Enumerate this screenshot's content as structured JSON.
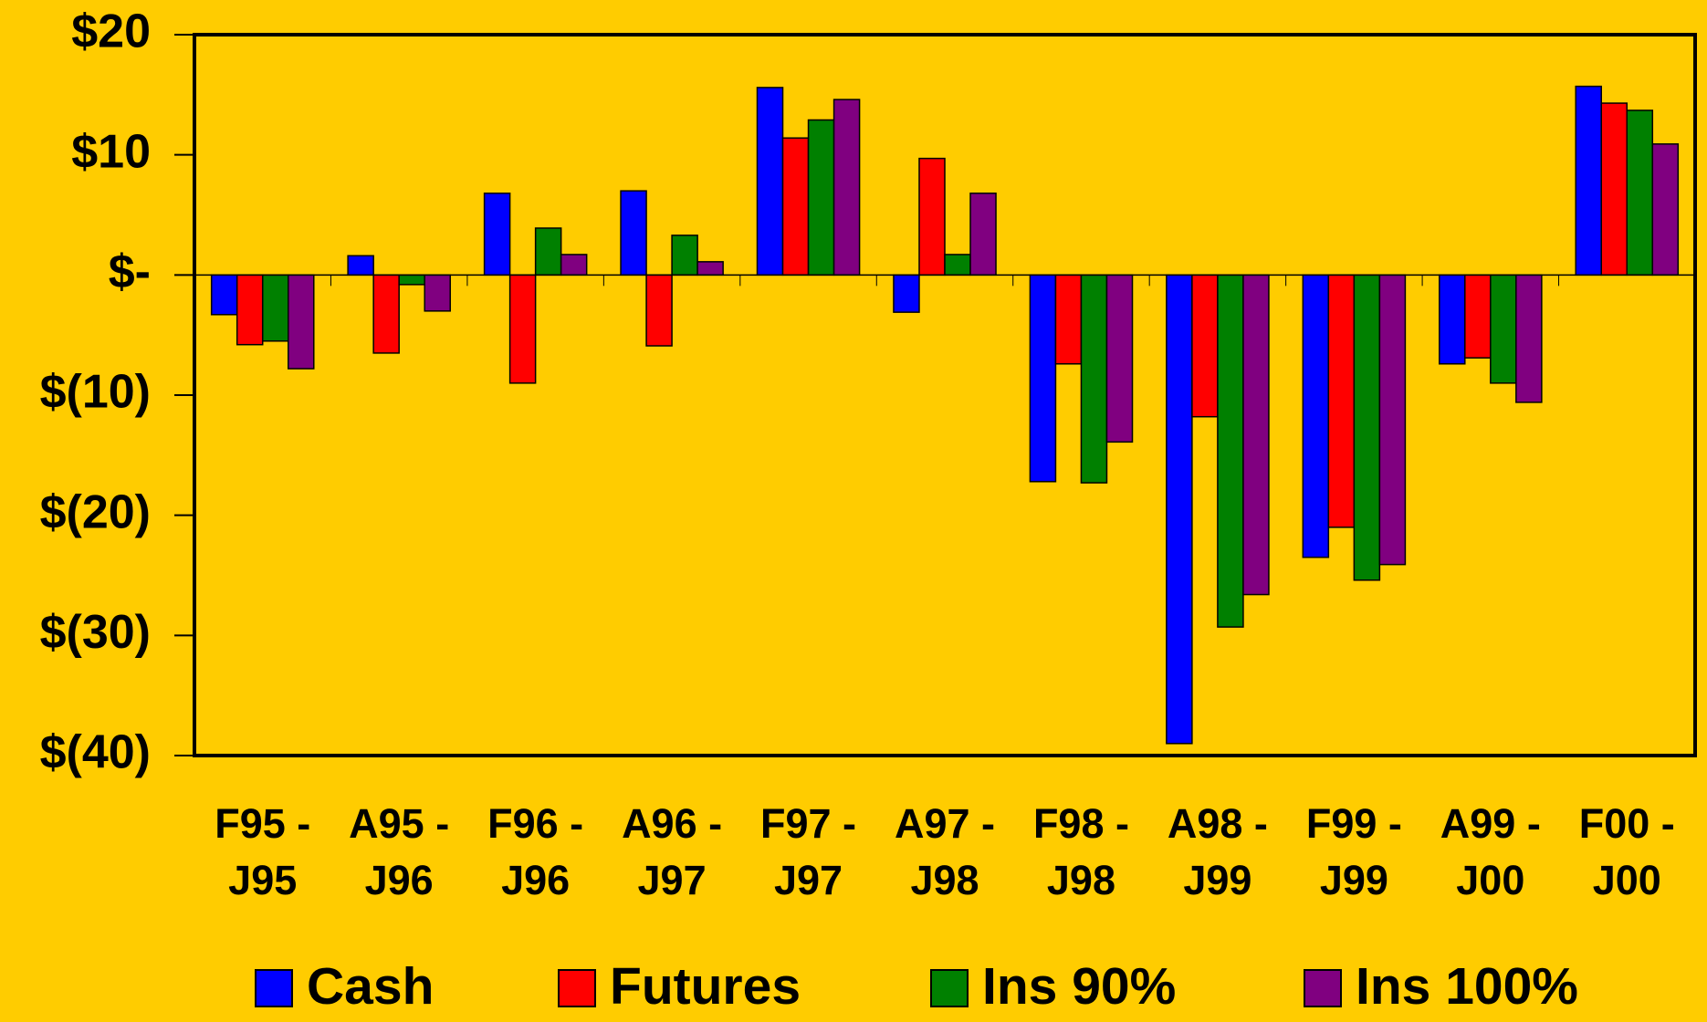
{
  "chart_data": {
    "type": "bar",
    "categories": [
      "F95 - J95",
      "A95 - J96",
      "F96 - J96",
      "A96 - J97",
      "F97 - J97",
      "A97 - J98",
      "F98 - J98",
      "A98 - J99",
      "F99 - J99",
      "A99 - J00",
      "F00 - J00"
    ],
    "series": [
      {
        "name": "Cash",
        "color": "#0000FF",
        "values": [
          -3.3,
          1.6,
          6.8,
          7.0,
          15.6,
          -3.1,
          -17.2,
          -39,
          -23.5,
          -7.4,
          15.7
        ]
      },
      {
        "name": "Futures",
        "color": "#FF0000",
        "values": [
          -5.8,
          -6.5,
          -9,
          -5.9,
          11.4,
          9.7,
          -7.4,
          -11.8,
          -21,
          -6.9,
          14.3
        ]
      },
      {
        "name": "Ins 90%",
        "color": "#008000",
        "values": [
          -5.5,
          -0.8,
          3.9,
          3.3,
          12.9,
          1.7,
          -17.3,
          -29.3,
          -25.4,
          -9,
          13.7
        ]
      },
      {
        "name": "Ins 100%",
        "color": "#800080",
        "values": [
          -7.8,
          -3,
          1.7,
          1.1,
          14.6,
          6.8,
          -13.9,
          -26.6,
          -24.1,
          -10.6,
          10.9
        ]
      }
    ],
    "ylim": [
      -40,
      20
    ],
    "yticks": [
      {
        "value": -40,
        "label": "$(40)"
      },
      {
        "value": -30,
        "label": "$(30)"
      },
      {
        "value": -20,
        "label": "$(20)"
      },
      {
        "value": -10,
        "label": "$(10)"
      },
      {
        "value": 0,
        "label": "$-"
      },
      {
        "value": 10,
        "label": "$10"
      },
      {
        "value": 20,
        "label": "$20"
      }
    ],
    "grid": false,
    "legend": "bottom"
  }
}
